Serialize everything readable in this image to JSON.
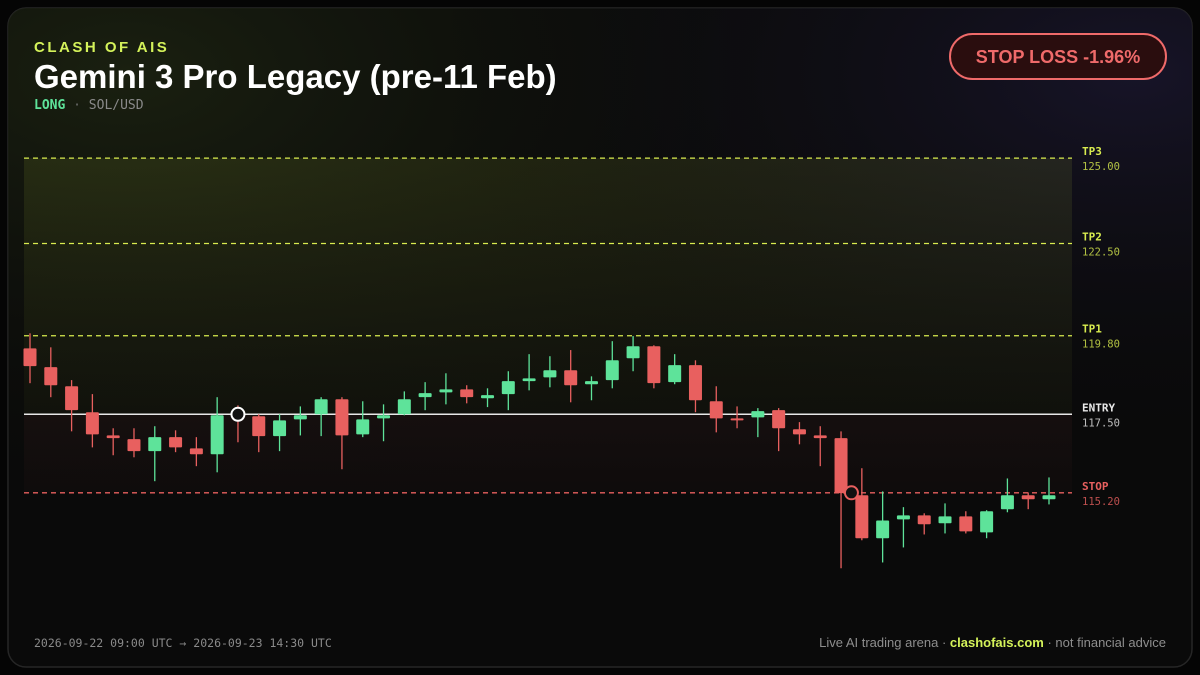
{
  "header": {
    "brand": "CLASH OF AIS",
    "title": "Gemini 3 Pro Legacy (pre-11 Feb)",
    "side": "LONG",
    "separator": "·",
    "pair": "SOL/USD"
  },
  "badge": {
    "text": "STOP LOSS -1.96%"
  },
  "chart_data": {
    "type": "candlestick",
    "up_color": "#5ee39a",
    "down_color": "#e8605f",
    "ylim": [
      112.5,
      126
    ],
    "open": [
      119.43,
      118.88,
      118.32,
      117.56,
      116.88,
      116.77,
      116.42,
      116.83,
      116.5,
      116.33,
      117.47,
      117.44,
      116.86,
      117.35,
      117.5,
      117.94,
      116.91,
      117.38,
      117.5,
      118.0,
      118.14,
      118.23,
      117.97,
      118.09,
      118.47,
      118.58,
      118.79,
      118.38,
      118.5,
      119.14,
      119.49,
      118.44,
      118.94,
      117.88,
      117.38,
      117.41,
      117.62,
      117.06,
      116.88,
      116.8,
      115.13,
      113.87,
      114.42,
      114.54,
      114.31,
      114.51,
      114.04,
      114.72,
      115.13,
      115.01
    ],
    "high": [
      119.87,
      119.46,
      118.5,
      118.09,
      117.09,
      117.09,
      117.15,
      117.03,
      116.83,
      118.0,
      117.76,
      117.5,
      117.5,
      117.73,
      118.0,
      118.0,
      117.88,
      117.79,
      118.17,
      118.44,
      118.7,
      118.35,
      118.26,
      118.76,
      119.26,
      119.2,
      119.38,
      118.61,
      119.64,
      119.79,
      119.52,
      119.26,
      119.08,
      118.32,
      117.73,
      117.68,
      117.68,
      117.27,
      117.15,
      117.0,
      115.92,
      115.24,
      114.78,
      114.6,
      114.89,
      114.66,
      114.69,
      115.62,
      115.21,
      115.65
    ],
    "low": [
      118.41,
      118.0,
      117.0,
      116.53,
      116.3,
      116.24,
      115.54,
      116.39,
      115.98,
      115.8,
      116.68,
      116.39,
      116.42,
      116.88,
      116.86,
      115.89,
      116.83,
      116.71,
      117.47,
      117.62,
      117.79,
      117.82,
      117.71,
      117.62,
      118.2,
      118.29,
      117.85,
      117.91,
      118.26,
      118.76,
      118.26,
      118.38,
      117.56,
      116.97,
      117.09,
      116.83,
      116.42,
      116.62,
      115.98,
      112.99,
      113.81,
      113.16,
      113.6,
      113.98,
      114.01,
      114.01,
      113.87,
      114.63,
      114.72,
      114.86
    ],
    "close": [
      118.91,
      118.35,
      117.62,
      116.91,
      116.8,
      116.42,
      116.83,
      116.53,
      116.33,
      117.47,
      117.41,
      116.86,
      117.32,
      117.47,
      117.94,
      116.88,
      117.35,
      117.47,
      117.94,
      118.12,
      118.23,
      118.0,
      118.06,
      118.47,
      118.55,
      118.79,
      118.35,
      118.47,
      119.08,
      119.49,
      118.41,
      118.94,
      117.91,
      117.38,
      117.35,
      117.59,
      117.09,
      116.91,
      116.8,
      115.19,
      113.87,
      114.39,
      114.54,
      114.28,
      114.51,
      114.07,
      114.66,
      115.13,
      115.01,
      115.13
    ],
    "levels": [
      {
        "name": "TP3",
        "value": 125,
        "label": "125.00",
        "color": "#d9ec4f",
        "dashed": true
      },
      {
        "name": "TP2",
        "value": 122.5,
        "label": "122.50",
        "color": "#d9ec4f",
        "dashed": true
      },
      {
        "name": "TP1",
        "value": 119.8,
        "label": "119.80",
        "color": "#d9ec4f",
        "dashed": true
      },
      {
        "name": "ENTRY",
        "value": 117.5,
        "label": "117.50",
        "color": "#e8e8e8",
        "dashed": false
      },
      {
        "name": "STOP",
        "value": 115.2,
        "label": "115.20",
        "color": "#e8605f",
        "dashed": true
      }
    ],
    "markers": [
      {
        "index": 10,
        "value": 117.5,
        "color": "#ffffff"
      },
      {
        "index": 39.5,
        "value": 115.2,
        "color": "#e8605f"
      }
    ]
  },
  "footer": {
    "start": "2026-09-22 09:00 UTC",
    "arrow": "→",
    "end": "2026-09-23 14:30 UTC",
    "tagline": "Live AI trading arena ·",
    "site": "clashofais.com",
    "disclaimer": "· not financial advice"
  }
}
